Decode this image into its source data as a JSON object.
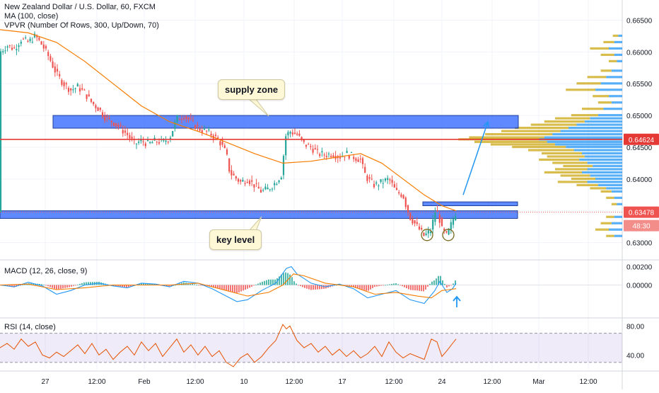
{
  "header": {
    "title": "New Zealand Dollar / U.S. Dollar, 60, FXCM",
    "ma_label": "MA (100, close)",
    "vpvr_label": "VPVR (Number Of Rows, 300, Up/Down, 70)"
  },
  "macd": {
    "label": "MACD (12, 26, close, 9)"
  },
  "rsi": {
    "label": "RSI (14, close)"
  },
  "annotations": {
    "supply_zone": "supply zone",
    "key_level": "key level"
  },
  "colors": {
    "bull": "#26a69a",
    "bear": "#ef5350",
    "ma": "#f57c00",
    "zone": "#2962ff",
    "level": "#e53935",
    "macd": "#2196f3",
    "signal": "#f57c00",
    "rsi": "#e65100",
    "rsi_band": "#7e57c2",
    "vp_up": "#2196f3",
    "vp_down": "#c8a000"
  },
  "chart_data": [
    {
      "type": "candlestick",
      "title": "New Zealand Dollar / U.S. Dollar, 60, FXCM",
      "x_ticks": [
        "27",
        "12:00",
        "Feb",
        "12:00",
        "10",
        "12:00",
        "17",
        "12:00",
        "24",
        "12:00",
        "Mar",
        "12:00"
      ],
      "y_ticks": [
        "0.66500",
        "0.66000",
        "0.65500",
        "0.65000",
        "0.64500",
        "0.64000",
        "0.63500",
        "0.63000"
      ],
      "ylim": [
        0.6275,
        0.6675
      ],
      "close_path": [
        [
          0,
          0.66
        ],
        [
          10,
          0.661
        ],
        [
          20,
          0.6605
        ],
        [
          30,
          0.662
        ],
        [
          40,
          0.6615
        ],
        [
          50,
          0.6625
        ],
        [
          60,
          0.661
        ],
        [
          70,
          0.659
        ],
        [
          80,
          0.6565
        ],
        [
          90,
          0.655
        ],
        [
          100,
          0.654
        ],
        [
          110,
          0.6545
        ],
        [
          120,
          0.6535
        ],
        [
          130,
          0.652
        ],
        [
          140,
          0.651
        ],
        [
          150,
          0.6495
        ],
        [
          160,
          0.649
        ],
        [
          170,
          0.648
        ],
        [
          180,
          0.647
        ],
        [
          190,
          0.6455
        ],
        [
          200,
          0.646
        ],
        [
          210,
          0.6455
        ],
        [
          220,
          0.646
        ],
        [
          230,
          0.6458
        ],
        [
          240,
          0.6465
        ],
        [
          250,
          0.6495
        ],
        [
          260,
          0.65
        ],
        [
          270,
          0.649
        ],
        [
          280,
          0.648
        ],
        [
          290,
          0.6475
        ],
        [
          300,
          0.647
        ],
        [
          310,
          0.646
        ],
        [
          320,
          0.644
        ],
        [
          325,
          0.641
        ],
        [
          330,
          0.6405
        ],
        [
          340,
          0.6395
        ],
        [
          350,
          0.64
        ],
        [
          360,
          0.639
        ],
        [
          370,
          0.638
        ],
        [
          380,
          0.6385
        ],
        [
          390,
          0.6395
        ],
        [
          400,
          0.641
        ],
        [
          402,
          0.6465
        ],
        [
          410,
          0.6475
        ],
        [
          420,
          0.647
        ],
        [
          430,
          0.6455
        ],
        [
          440,
          0.645
        ],
        [
          450,
          0.644
        ],
        [
          460,
          0.6438
        ],
        [
          470,
          0.644
        ],
        [
          480,
          0.6435
        ],
        [
          490,
          0.644
        ],
        [
          500,
          0.6435
        ],
        [
          510,
          0.643
        ],
        [
          515,
          0.641
        ],
        [
          520,
          0.64
        ],
        [
          530,
          0.639
        ],
        [
          540,
          0.6395
        ],
        [
          550,
          0.64
        ],
        [
          560,
          0.638
        ],
        [
          570,
          0.6375
        ],
        [
          575,
          0.6355
        ],
        [
          580,
          0.634
        ],
        [
          590,
          0.6325
        ],
        [
          600,
          0.631
        ],
        [
          610,
          0.632
        ],
        [
          615,
          0.635
        ],
        [
          620,
          0.6345
        ],
        [
          625,
          0.632
        ],
        [
          632,
          0.631
        ],
        [
          640,
          0.6335
        ],
        [
          645,
          0.6348
        ]
      ],
      "ma_path": [
        [
          0,
          0.6635
        ],
        [
          40,
          0.663
        ],
        [
          80,
          0.6615
        ],
        [
          120,
          0.6585
        ],
        [
          160,
          0.655
        ],
        [
          200,
          0.6515
        ],
        [
          240,
          0.649
        ],
        [
          280,
          0.6475
        ],
        [
          320,
          0.6458
        ],
        [
          360,
          0.644
        ],
        [
          400,
          0.6425
        ],
        [
          440,
          0.6428
        ],
        [
          480,
          0.6435
        ],
        [
          510,
          0.644
        ],
        [
          540,
          0.6425
        ],
        [
          570,
          0.64
        ],
        [
          600,
          0.6375
        ],
        [
          625,
          0.6358
        ],
        [
          645,
          0.635
        ]
      ],
      "supply_zone": [
        0.648,
        0.65
      ],
      "supply_zone_x": [
        75,
        733
      ],
      "key_level_zone": [
        0.6338,
        0.635
      ],
      "key_level_x": [
        0,
        732
      ],
      "small_level": [
        0.6358,
        0.6364
      ],
      "small_level_x": [
        598,
        732
      ],
      "resistance_line": 0.64624,
      "current_price_line": 0.63478,
      "price_labels": {
        "level": "0.64624",
        "current": "0.63478",
        "countdown": "48:30"
      },
      "projection_arrow": [
        [
          655,
          0.6375
        ],
        [
          690,
          0.649
        ]
      ],
      "circled_lows": [
        [
          604,
          0.6312
        ],
        [
          634,
          0.6312
        ]
      ],
      "volume_profile": [
        [
          0.6625,
          3,
          4
        ],
        [
          0.6615,
          6,
          8
        ],
        [
          0.6605,
          10,
          14
        ],
        [
          0.6595,
          6,
          10
        ],
        [
          0.6585,
          4,
          6
        ],
        [
          0.657,
          8,
          8
        ],
        [
          0.656,
          12,
          14
        ],
        [
          0.655,
          16,
          18
        ],
        [
          0.654,
          20,
          22
        ],
        [
          0.653,
          10,
          12
        ],
        [
          0.652,
          8,
          10
        ],
        [
          0.651,
          14,
          16
        ],
        [
          0.65,
          18,
          20
        ],
        [
          0.6495,
          24,
          26
        ],
        [
          0.649,
          28,
          30
        ],
        [
          0.6485,
          34,
          34
        ],
        [
          0.648,
          40,
          40
        ],
        [
          0.6475,
          46,
          44
        ],
        [
          0.647,
          52,
          50
        ],
        [
          0.6465,
          58,
          56
        ],
        [
          0.6462,
          62,
          60
        ],
        [
          0.6458,
          56,
          54
        ],
        [
          0.6454,
          50,
          48
        ],
        [
          0.645,
          42,
          40
        ],
        [
          0.6445,
          36,
          34
        ],
        [
          0.644,
          30,
          30
        ],
        [
          0.6435,
          28,
          28
        ],
        [
          0.643,
          32,
          30
        ],
        [
          0.6425,
          26,
          26
        ],
        [
          0.642,
          22,
          22
        ],
        [
          0.6415,
          26,
          24
        ],
        [
          0.641,
          30,
          28
        ],
        [
          0.6405,
          24,
          22
        ],
        [
          0.64,
          20,
          18
        ],
        [
          0.6395,
          26,
          22
        ],
        [
          0.639,
          18,
          16
        ],
        [
          0.6385,
          12,
          12
        ],
        [
          0.638,
          8,
          8
        ],
        [
          0.637,
          6,
          6
        ],
        [
          0.636,
          4,
          4
        ],
        [
          0.634,
          6,
          6
        ],
        [
          0.633,
          8,
          8
        ],
        [
          0.632,
          10,
          10
        ],
        [
          0.631,
          6,
          6
        ]
      ]
    },
    {
      "type": "line",
      "title": "MACD (12, 26, close, 9)",
      "y_ticks": [
        "0.00200",
        "0.00000"
      ],
      "ylim": [
        -0.0035,
        0.0025
      ],
      "macd_path": [
        [
          0,
          0.0
        ],
        [
          20,
          -0.0002
        ],
        [
          40,
          0.0003
        ],
        [
          60,
          -0.0001
        ],
        [
          80,
          -0.001
        ],
        [
          100,
          -0.0006
        ],
        [
          120,
          0.0
        ],
        [
          140,
          0.0002
        ],
        [
          160,
          -0.0001
        ],
        [
          180,
          -0.0003
        ],
        [
          200,
          0.0002
        ],
        [
          220,
          0.0001
        ],
        [
          240,
          -0.0002
        ],
        [
          260,
          0.0004
        ],
        [
          280,
          0.0002
        ],
        [
          300,
          -0.0004
        ],
        [
          320,
          -0.0012
        ],
        [
          335,
          -0.0018
        ],
        [
          350,
          -0.0016
        ],
        [
          370,
          -0.0006
        ],
        [
          390,
          0.0002
        ],
        [
          405,
          0.0018
        ],
        [
          412,
          0.002
        ],
        [
          420,
          0.0012
        ],
        [
          440,
          0.0002
        ],
        [
          460,
          -0.0002
        ],
        [
          480,
          0.0001
        ],
        [
          500,
          -0.0004
        ],
        [
          520,
          -0.0014
        ],
        [
          540,
          -0.001
        ],
        [
          560,
          -0.0006
        ],
        [
          580,
          -0.0016
        ],
        [
          600,
          -0.002
        ],
        [
          615,
          -0.0006
        ],
        [
          622,
          0.0004
        ],
        [
          632,
          -0.0008
        ],
        [
          640,
          -0.0004
        ],
        [
          645,
          0.0002
        ]
      ],
      "signal_path": [
        [
          0,
          0.0
        ],
        [
          40,
          0.0001
        ],
        [
          80,
          -0.0005
        ],
        [
          120,
          -0.0003
        ],
        [
          160,
          0.0
        ],
        [
          200,
          0.0
        ],
        [
          240,
          0.0
        ],
        [
          280,
          0.0002
        ],
        [
          320,
          -0.0006
        ],
        [
          350,
          -0.0012
        ],
        [
          380,
          -0.0008
        ],
        [
          400,
          0.0
        ],
        [
          415,
          0.0012
        ],
        [
          430,
          0.001
        ],
        [
          460,
          0.0002
        ],
        [
          500,
          -0.0002
        ],
        [
          530,
          -0.001
        ],
        [
          560,
          -0.0008
        ],
        [
          590,
          -0.0012
        ],
        [
          610,
          -0.0014
        ],
        [
          625,
          -0.0006
        ],
        [
          645,
          -0.0004
        ]
      ]
    },
    {
      "type": "line",
      "title": "RSI (14, close)",
      "y_ticks": [
        "80.00",
        "40.00"
      ],
      "ylim": [
        20,
        90
      ],
      "band": [
        30,
        70
      ],
      "rsi_path": [
        [
          0,
          50
        ],
        [
          10,
          56
        ],
        [
          20,
          48
        ],
        [
          30,
          62
        ],
        [
          40,
          52
        ],
        [
          50,
          58
        ],
        [
          60,
          40
        ],
        [
          70,
          36
        ],
        [
          80,
          44
        ],
        [
          90,
          38
        ],
        [
          100,
          46
        ],
        [
          110,
          54
        ],
        [
          120,
          42
        ],
        [
          130,
          56
        ],
        [
          140,
          40
        ],
        [
          150,
          48
        ],
        [
          160,
          34
        ],
        [
          170,
          44
        ],
        [
          180,
          52
        ],
        [
          190,
          40
        ],
        [
          200,
          58
        ],
        [
          210,
          46
        ],
        [
          220,
          56
        ],
        [
          230,
          38
        ],
        [
          240,
          50
        ],
        [
          250,
          62
        ],
        [
          260,
          44
        ],
        [
          270,
          54
        ],
        [
          280,
          40
        ],
        [
          290,
          52
        ],
        [
          300,
          38
        ],
        [
          310,
          46
        ],
        [
          320,
          30
        ],
        [
          330,
          24
        ],
        [
          340,
          36
        ],
        [
          350,
          42
        ],
        [
          360,
          30
        ],
        [
          370,
          38
        ],
        [
          380,
          50
        ],
        [
          390,
          60
        ],
        [
          400,
          82
        ],
        [
          405,
          76
        ],
        [
          410,
          80
        ],
        [
          420,
          60
        ],
        [
          430,
          50
        ],
        [
          440,
          56
        ],
        [
          450,
          44
        ],
        [
          460,
          52
        ],
        [
          470,
          40
        ],
        [
          480,
          48
        ],
        [
          490,
          38
        ],
        [
          500,
          46
        ],
        [
          510,
          36
        ],
        [
          520,
          42
        ],
        [
          530,
          52
        ],
        [
          540,
          38
        ],
        [
          550,
          58
        ],
        [
          560,
          44
        ],
        [
          570,
          36
        ],
        [
          580,
          42
        ],
        [
          590,
          38
        ],
        [
          600,
          34
        ],
        [
          610,
          62
        ],
        [
          618,
          58
        ],
        [
          625,
          38
        ],
        [
          632,
          46
        ],
        [
          640,
          56
        ],
        [
          645,
          62
        ]
      ]
    }
  ]
}
